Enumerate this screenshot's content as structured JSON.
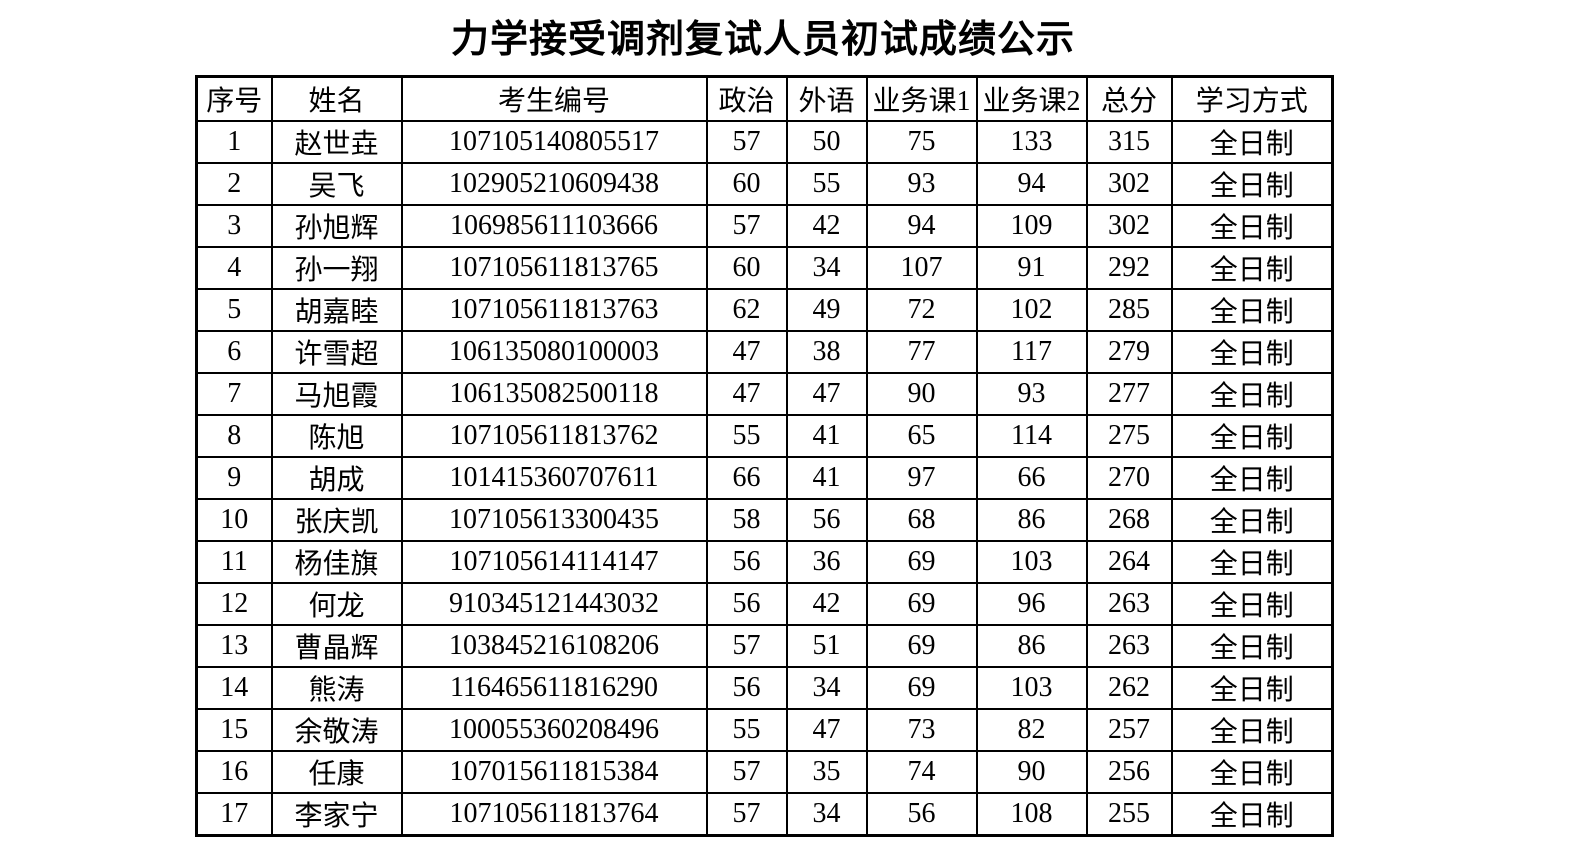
{
  "title": "力学接受调剂复试人员初试成绩公示",
  "table": {
    "headers": [
      "序号",
      "姓名",
      "考生编号",
      "政治",
      "外语",
      "业务课1",
      "业务课2",
      "总分",
      "学习方式"
    ],
    "column_names": [
      "col-index",
      "col-name",
      "col-candidate-id",
      "col-politics",
      "col-foreign-language",
      "col-course1",
      "col-course2",
      "col-total",
      "col-study-mode"
    ],
    "rows": [
      [
        "1",
        "赵世垚",
        "107105140805517",
        "57",
        "50",
        "75",
        "133",
        "315",
        "全日制"
      ],
      [
        "2",
        "吴飞",
        "102905210609438",
        "60",
        "55",
        "93",
        "94",
        "302",
        "全日制"
      ],
      [
        "3",
        "孙旭辉",
        "106985611103666",
        "57",
        "42",
        "94",
        "109",
        "302",
        "全日制"
      ],
      [
        "4",
        "孙一翔",
        "107105611813765",
        "60",
        "34",
        "107",
        "91",
        "292",
        "全日制"
      ],
      [
        "5",
        "胡嘉睦",
        "107105611813763",
        "62",
        "49",
        "72",
        "102",
        "285",
        "全日制"
      ],
      [
        "6",
        "许雪超",
        "106135080100003",
        "47",
        "38",
        "77",
        "117",
        "279",
        "全日制"
      ],
      [
        "7",
        "马旭霞",
        "106135082500118",
        "47",
        "47",
        "90",
        "93",
        "277",
        "全日制"
      ],
      [
        "8",
        "陈旭",
        "107105611813762",
        "55",
        "41",
        "65",
        "114",
        "275",
        "全日制"
      ],
      [
        "9",
        "胡成",
        "101415360707611",
        "66",
        "41",
        "97",
        "66",
        "270",
        "全日制"
      ],
      [
        "10",
        "张庆凯",
        "107105613300435",
        "58",
        "56",
        "68",
        "86",
        "268",
        "全日制"
      ],
      [
        "11",
        "杨佳旗",
        "107105614114147",
        "56",
        "36",
        "69",
        "103",
        "264",
        "全日制"
      ],
      [
        "12",
        "何龙",
        "910345121443032",
        "56",
        "42",
        "69",
        "96",
        "263",
        "全日制"
      ],
      [
        "13",
        "曹晶辉",
        "103845216108206",
        "57",
        "51",
        "69",
        "86",
        "263",
        "全日制"
      ],
      [
        "14",
        "熊涛",
        "116465611816290",
        "56",
        "34",
        "69",
        "103",
        "262",
        "全日制"
      ],
      [
        "15",
        "余敬涛",
        "100055360208496",
        "55",
        "47",
        "73",
        "82",
        "257",
        "全日制"
      ],
      [
        "16",
        "任康",
        "107015611815384",
        "57",
        "35",
        "74",
        "90",
        "256",
        "全日制"
      ],
      [
        "17",
        "李家宁",
        "107105611813764",
        "57",
        "34",
        "56",
        "108",
        "255",
        "全日制"
      ]
    ]
  }
}
